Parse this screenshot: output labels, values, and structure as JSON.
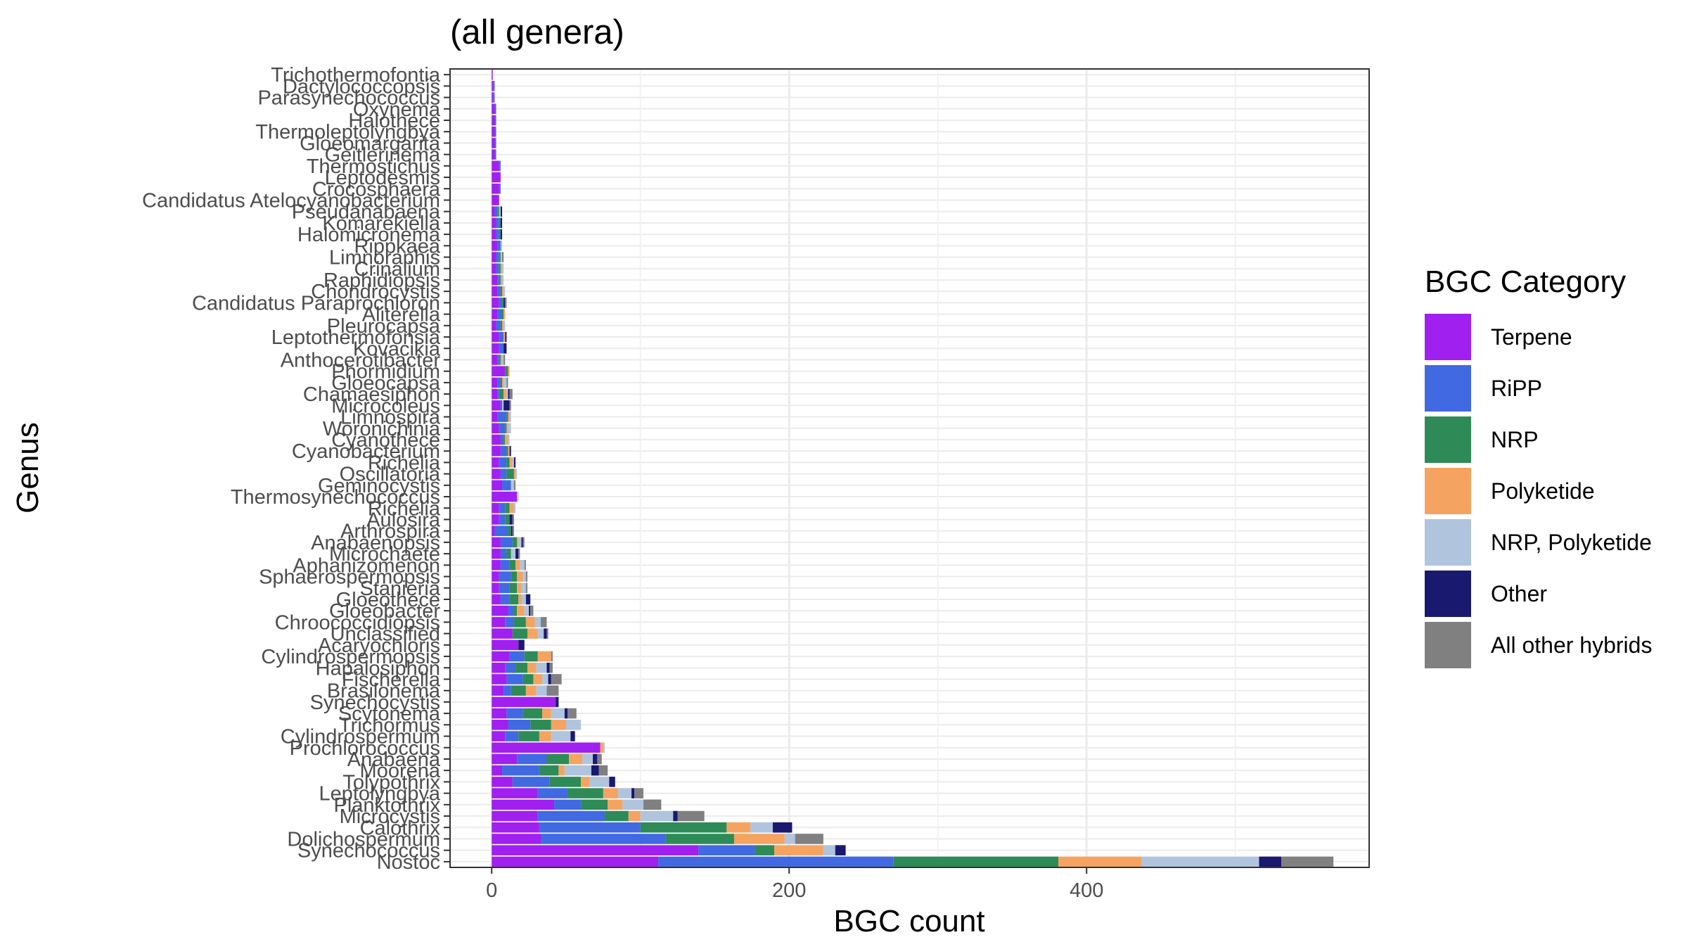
{
  "chart_data": {
    "type": "bar",
    "orientation": "horizontal",
    "stacked": true,
    "title": "(all genera)",
    "xlabel": "BGC count",
    "ylabel": "Genus",
    "xlim": [
      -28,
      590
    ],
    "x_ticks": [
      0,
      200,
      400
    ],
    "grid": true,
    "legend": {
      "title": "BGC Category",
      "position": "right"
    },
    "categories": [
      "Nostoc",
      "Synechococcus",
      "Dolichospermum",
      "Calothrix",
      "Microcystis",
      "Planktothrix",
      "Leptolyngbya",
      "Tolypothrix",
      "Moorena",
      "Anabaena",
      "Prochlorococcus",
      "Cylindrospermum",
      "Trichormus",
      "Scytonema",
      "Synechocystis",
      "Brasilonema",
      "Fischerella",
      "Hapalosiphon",
      "Cylindrospermopsis",
      "Acaryochloris",
      "Unclassified",
      "Chroococcidiopsis",
      "Gloeobacter",
      "Gloeothece",
      "Stanieria",
      "Sphaerospermopsis",
      "Aphanizomenon",
      "Microchaete",
      "Anabaenopsis",
      "Arthrospira",
      "Aulosira",
      "Richelia",
      "Thermosynechococcus",
      "Geminocystis",
      "Oscillatoria",
      "Richelia",
      "Cyanobacterium",
      "Cyanothece",
      "Woronichinia",
      "Limnospira",
      "Microcoleus",
      "Chamaesiphon",
      "Gloeocapsa",
      "Phormidium",
      "Anthocerotibacter",
      "Kovacikia",
      "Leptothermofonsia",
      "Pleurocapsa",
      "Aliterella",
      "Candidatus Paraprochloron",
      "Chondrocystis",
      "Raphidiopsis",
      "Crinalium",
      "Limnoraphis",
      "Rippkaea",
      "Halomicronema",
      "Komarekiella",
      "Pseudanabaena",
      "Candidatus Atelocyanobacterium",
      "Crocosphaera",
      "Leptodesmis",
      "Thermostichus",
      "Geitlerinema",
      "Gloeomargarita",
      "Thermoleptolyngbya",
      "Halothece",
      "Oxynema",
      "Parasynechococcus",
      "Dactylococcopsis",
      "Trichothermofontia"
    ],
    "series": [
      {
        "name": "Terpene",
        "color": "#A020F0",
        "values": [
          112,
          139,
          33,
          32,
          31,
          42,
          31,
          14,
          7,
          17,
          73,
          9,
          11,
          10,
          43,
          8,
          10,
          9,
          12,
          18,
          14,
          9,
          11,
          6,
          5,
          5,
          6,
          6,
          6,
          2,
          5,
          5,
          17,
          7,
          6,
          5,
          6,
          6,
          5,
          4,
          6,
          4,
          4,
          9,
          4,
          5,
          5,
          3,
          4,
          5,
          4,
          4,
          3,
          3,
          4,
          3,
          3,
          2,
          5,
          5,
          6,
          5,
          2,
          2,
          2,
          2,
          2,
          1,
          1,
          0
        ]
      },
      {
        "name": "RiPP",
        "color": "#4169E1",
        "values": [
          158,
          38,
          84,
          68,
          45,
          18,
          20,
          25,
          25,
          20,
          0,
          9,
          15,
          11,
          0,
          5,
          11,
          7,
          10,
          0,
          0,
          6,
          4,
          6,
          7,
          8,
          6,
          4,
          8,
          9,
          4,
          4,
          0,
          6,
          4,
          5,
          4,
          2,
          4,
          6,
          1,
          1,
          2,
          0,
          1,
          3,
          3,
          3,
          3,
          2,
          2,
          1,
          2,
          2,
          2,
          2,
          2,
          2,
          0,
          1,
          0,
          1,
          1,
          1,
          1,
          1,
          1,
          1,
          1,
          0
        ]
      },
      {
        "name": "NRP",
        "color": "#2E8B57",
        "values": [
          111,
          13,
          46,
          58,
          16,
          18,
          24,
          21,
          13,
          15,
          0,
          14,
          14,
          13,
          0,
          10,
          7,
          8,
          9,
          0,
          10,
          8,
          2,
          6,
          5,
          4,
          4,
          3,
          3,
          2,
          3,
          3,
          0,
          0,
          5,
          2,
          1,
          1,
          1,
          1,
          0,
          3,
          1,
          2,
          1,
          0,
          0,
          1,
          1,
          1,
          1,
          1,
          1,
          1,
          0,
          1,
          1,
          1,
          0,
          0,
          0,
          0,
          0,
          0,
          0,
          0,
          0,
          0,
          0,
          0
        ]
      },
      {
        "name": "Polyketide",
        "color": "#F4A460",
        "values": [
          56,
          33,
          34,
          16,
          8,
          10,
          10,
          6,
          4,
          9,
          2,
          8,
          10,
          6,
          0,
          7,
          6,
          6,
          9,
          0,
          7,
          6,
          5,
          2,
          3,
          4,
          3,
          0,
          1,
          0,
          0,
          3,
          0,
          0,
          1,
          2,
          1,
          2,
          1,
          1,
          0,
          2,
          1,
          1,
          1,
          0,
          1,
          1,
          1,
          0,
          1,
          1,
          1,
          0,
          0,
          0,
          0,
          0,
          0,
          0,
          0,
          0,
          0,
          0,
          0,
          0,
          0,
          0,
          0,
          0
        ]
      },
      {
        "name": "NRP, Polyketide",
        "color": "#B0C4DE",
        "values": [
          79,
          8,
          7,
          15,
          22,
          14,
          9,
          13,
          18,
          7,
          1,
          13,
          10,
          9,
          0,
          7,
          4,
          7,
          0,
          0,
          4,
          4,
          3,
          3,
          3,
          2,
          3,
          3,
          2,
          0,
          0,
          1,
          1,
          2,
          1,
          1,
          0,
          1,
          2,
          1,
          1,
          1,
          2,
          0,
          1,
          0,
          0,
          1,
          0,
          0,
          1,
          1,
          1,
          1,
          1,
          0,
          0,
          1,
          0,
          0,
          0,
          0,
          0,
          0,
          0,
          0,
          0,
          0,
          0,
          0
        ]
      },
      {
        "name": "Other",
        "color": "#191970",
        "values": [
          15,
          7,
          0,
          13,
          3,
          0,
          2,
          4,
          5,
          3,
          0,
          3,
          0,
          2,
          2,
          0,
          2,
          2,
          0,
          4,
          2,
          0,
          1,
          3,
          0,
          0,
          0,
          2,
          1,
          1,
          2,
          0,
          0,
          0,
          0,
          1,
          1,
          0,
          0,
          0,
          4,
          1,
          0,
          0,
          0,
          2,
          1,
          0,
          0,
          1,
          0,
          0,
          0,
          0,
          0,
          1,
          1,
          1,
          0,
          0,
          0,
          0,
          0,
          0,
          0,
          0,
          0,
          0,
          0,
          0
        ]
      },
      {
        "name": "All other hybrids",
        "color": "#808080",
        "values": [
          35,
          0,
          19,
          0,
          18,
          12,
          6,
          0,
          6,
          3,
          0,
          0,
          0,
          6,
          0,
          8,
          7,
          2,
          1,
          0,
          1,
          4,
          2,
          0,
          1,
          1,
          1,
          1,
          1,
          1,
          1,
          0,
          0,
          1,
          0,
          0,
          0,
          0,
          0,
          0,
          1,
          2,
          1,
          0,
          1,
          0,
          0,
          0,
          0,
          1,
          0,
          0,
          0,
          1,
          0,
          0,
          0,
          0,
          0,
          0,
          0,
          0,
          0,
          0,
          0,
          0,
          0,
          0,
          0,
          0
        ]
      }
    ]
  }
}
